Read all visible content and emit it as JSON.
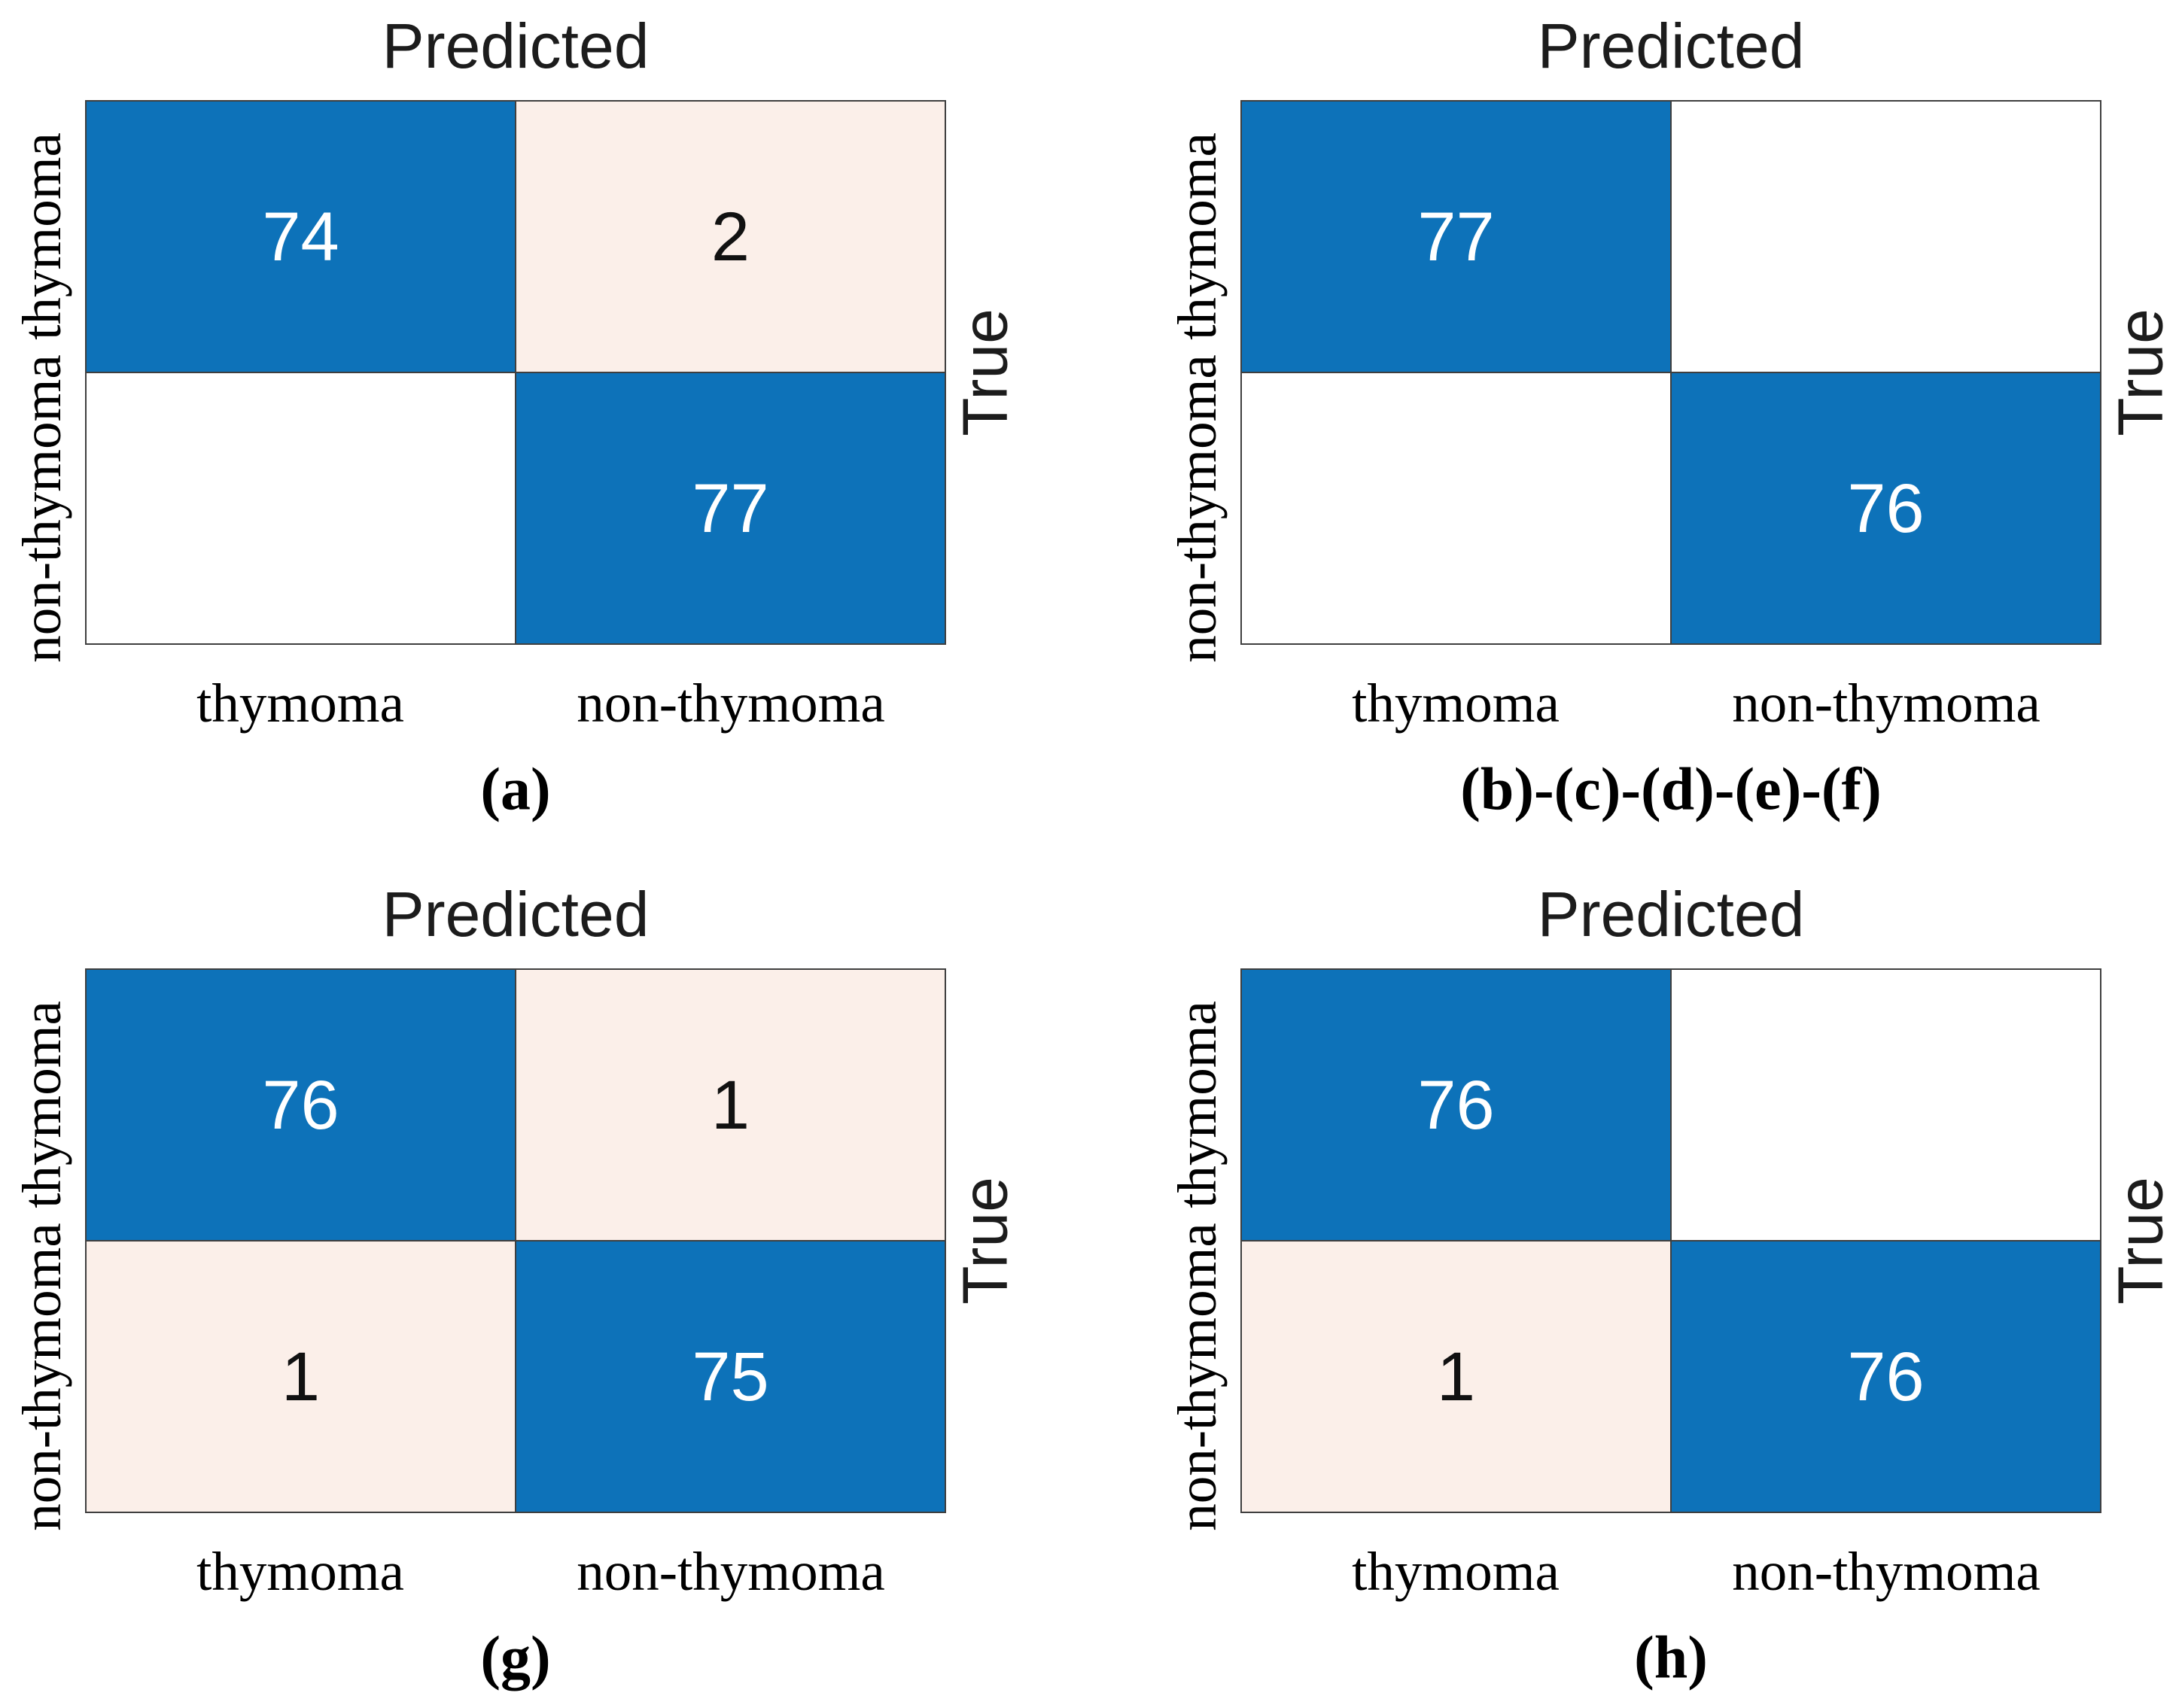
{
  "colors": {
    "diagonal_blue": "#0D72B9",
    "off_diagonal_pink": "#FBEFE9",
    "empty_cell_white": "#FFFFFF",
    "grid_line": "#3F3F3F",
    "axis_title_text": "#1C1C1C",
    "tick_label_text": "#000000",
    "cell_text_on_blue": "#FFFFFF",
    "cell_text_on_pink": "#111111"
  },
  "shared": {
    "top_axis_title": "Predicted",
    "right_axis_title": "True",
    "x_tick_labels": [
      "thymoma",
      "non-thymoma"
    ],
    "y_tick_labels": [
      "thymoma",
      "non-thymoma"
    ]
  },
  "panels": [
    {
      "caption": "(a)",
      "cells": [
        {
          "value": "74",
          "style": "diag"
        },
        {
          "value": "2",
          "style": "off"
        },
        {
          "value": "",
          "style": "blank"
        },
        {
          "value": "77",
          "style": "diag"
        }
      ]
    },
    {
      "caption": "(b)-(c)-(d)-(e)-(f)",
      "cells": [
        {
          "value": "77",
          "style": "diag"
        },
        {
          "value": "",
          "style": "blank"
        },
        {
          "value": "",
          "style": "blank"
        },
        {
          "value": "76",
          "style": "diag"
        }
      ]
    },
    {
      "caption": "(g)",
      "cells": [
        {
          "value": "76",
          "style": "diag"
        },
        {
          "value": "1",
          "style": "off"
        },
        {
          "value": "1",
          "style": "off"
        },
        {
          "value": "75",
          "style": "diag"
        }
      ]
    },
    {
      "caption": "(h)",
      "cells": [
        {
          "value": "76",
          "style": "diag"
        },
        {
          "value": "",
          "style": "blank"
        },
        {
          "value": "1",
          "style": "off"
        },
        {
          "value": "76",
          "style": "diag"
        }
      ]
    }
  ],
  "chart_data": [
    {
      "type": "heatmap",
      "title": "Predicted",
      "ylabel": "True",
      "caption": "(a)",
      "x_categories": [
        "thymoma",
        "non-thymoma"
      ],
      "y_categories": [
        "thymoma",
        "non-thymoma"
      ],
      "values": [
        [
          74,
          2
        ],
        [
          0,
          77
        ]
      ],
      "legend_position": "none",
      "grid": true
    },
    {
      "type": "heatmap",
      "title": "Predicted",
      "ylabel": "True",
      "caption": "(b)-(c)-(d)-(e)-(f)",
      "x_categories": [
        "thymoma",
        "non-thymoma"
      ],
      "y_categories": [
        "thymoma",
        "non-thymoma"
      ],
      "values": [
        [
          77,
          0
        ],
        [
          0,
          76
        ]
      ],
      "legend_position": "none",
      "grid": true
    },
    {
      "type": "heatmap",
      "title": "Predicted",
      "ylabel": "True",
      "caption": "(g)",
      "x_categories": [
        "thymoma",
        "non-thymoma"
      ],
      "y_categories": [
        "thymoma",
        "non-thymoma"
      ],
      "values": [
        [
          76,
          1
        ],
        [
          1,
          75
        ]
      ],
      "legend_position": "none",
      "grid": true
    },
    {
      "type": "heatmap",
      "title": "Predicted",
      "ylabel": "True",
      "caption": "(h)",
      "x_categories": [
        "thymoma",
        "non-thymoma"
      ],
      "y_categories": [
        "thymoma",
        "non-thymoma"
      ],
      "values": [
        [
          76,
          0
        ],
        [
          1,
          76
        ]
      ],
      "legend_position": "none",
      "grid": true
    }
  ]
}
